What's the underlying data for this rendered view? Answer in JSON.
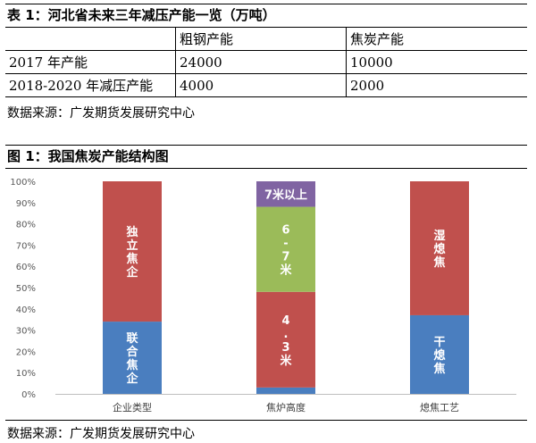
{
  "table": {
    "title": "表 1：河北省未来三年减压产能一览（万吨）",
    "header": [
      "",
      "粗钢产能",
      "焦炭产能"
    ],
    "rows": [
      [
        "2017 年产能",
        "24000",
        "10000"
      ],
      [
        "2018-2020 年减压产能",
        "4000",
        "2000"
      ]
    ],
    "source": "数据来源：广发期货发展研究中心"
  },
  "figure": {
    "title": "图 1：我国焦炭产能结构图",
    "source": "数据来源：广发期货发展研究中心"
  },
  "chart_data": {
    "type": "bar",
    "stacked": true,
    "percent": true,
    "categories": [
      "企业类型",
      "焦炉高度",
      "熄焦工艺"
    ],
    "ylim": [
      0,
      100
    ],
    "yticks": [
      "0%",
      "10%",
      "20%",
      "30%",
      "40%",
      "50%",
      "60%",
      "70%",
      "80%",
      "90%",
      "100%"
    ],
    "grid": false,
    "legend": "none",
    "stacks": [
      [
        {
          "label": "联合焦企",
          "value": 34,
          "color": "#4a7ebf"
        },
        {
          "label": "独立焦企",
          "value": 66,
          "color": "#c0504d"
        }
      ],
      [
        {
          "label": "",
          "value": 3,
          "color": "#4a7ebf"
        },
        {
          "label": "4.3米",
          "value": 45,
          "color": "#c0504d"
        },
        {
          "label": "6-7米",
          "value": 40,
          "color": "#9bbb59"
        },
        {
          "label": "7米以上",
          "value": 12,
          "color": "#8064a2"
        }
      ],
      [
        {
          "label": "干熄焦",
          "value": 37,
          "color": "#4a7ebf"
        },
        {
          "label": "湿熄焦",
          "value": 63,
          "color": "#c0504d"
        }
      ]
    ]
  }
}
